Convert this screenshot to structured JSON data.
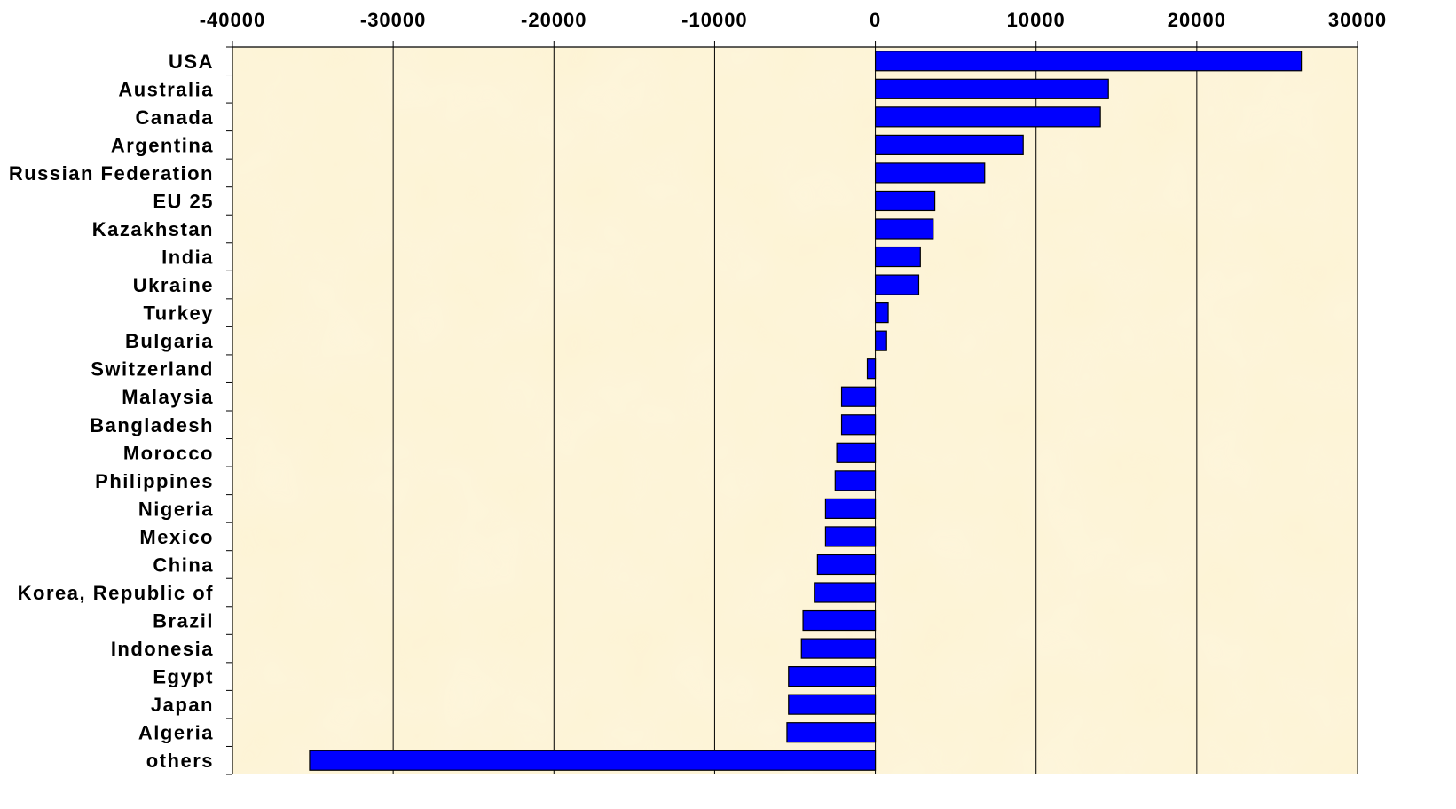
{
  "chart_data": {
    "type": "bar",
    "orientation": "horizontal",
    "xlim": [
      -40000,
      30000
    ],
    "x_ticks": [
      -40000,
      -30000,
      -20000,
      -10000,
      0,
      10000,
      20000,
      30000
    ],
    "x_tick_labels": [
      "-40000",
      "-30000",
      "-20000",
      "-10000",
      "0",
      "10000",
      "20000",
      "30000"
    ],
    "x_axis_position": "top",
    "grid": "vertical",
    "legend": "none",
    "title": "",
    "xlabel": "",
    "ylabel": "",
    "categories": [
      "USA",
      "Australia",
      "Canada",
      "Argentina",
      "Russian Federation",
      "EU 25",
      "Kazakhstan",
      "India",
      "Ukraine",
      "Turkey",
      "Bulgaria",
      "Switzerland",
      "Malaysia",
      "Bangladesh",
      "Morocco",
      "Philippines",
      "Nigeria",
      "Mexico",
      "China",
      "Korea, Republic of",
      "Brazil",
      "Indonesia",
      "Egypt",
      "Japan",
      "Algeria",
      "others"
    ],
    "values": [
      26500,
      14500,
      14000,
      9200,
      6800,
      3700,
      3600,
      2800,
      2700,
      800,
      700,
      -500,
      -2100,
      -2100,
      -2400,
      -2500,
      -3100,
      -3100,
      -3600,
      -3800,
      -4500,
      -4600,
      -5400,
      -5400,
      -5500,
      -35200
    ],
    "colors": {
      "bar_fill": "#0000ff",
      "bar_stroke": "#000000",
      "plot_background": "#fdf3d4",
      "gridline": "#000000"
    }
  }
}
